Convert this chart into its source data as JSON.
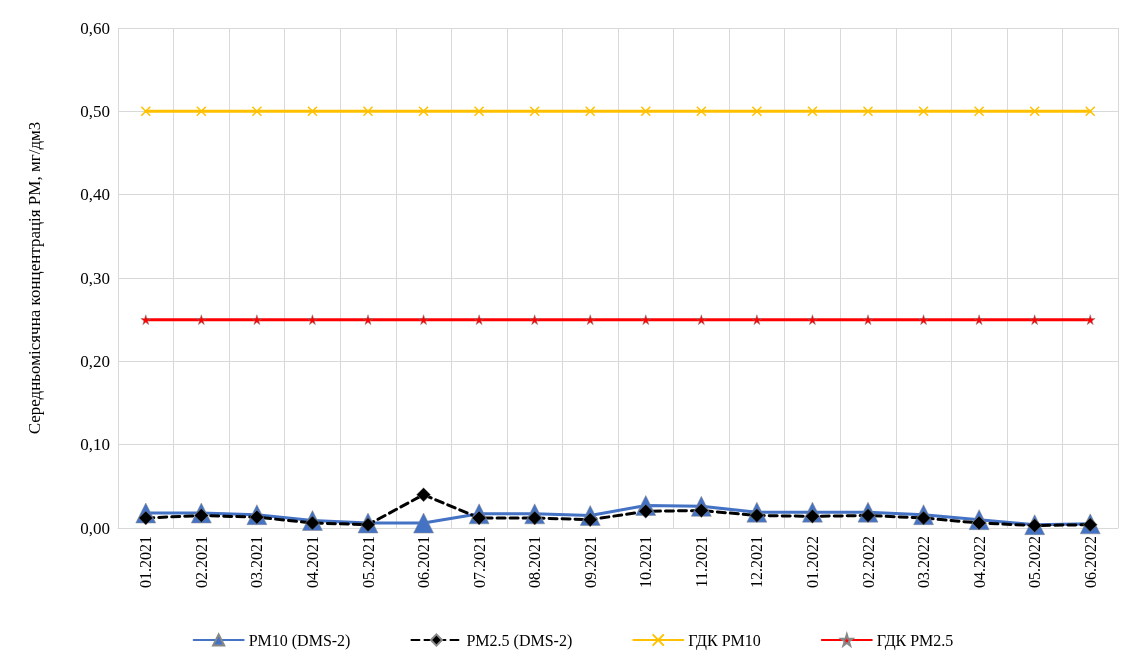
{
  "chart_data": {
    "type": "line",
    "ylabel": "Середньомісячна концентрація РМ, мг/дм3",
    "categories": [
      "01.2021",
      "02.2021",
      "03.2021",
      "04.2021",
      "05.2021",
      "06.2021",
      "07.2021",
      "08.2021",
      "09.2021",
      "10.2021",
      "11.2021",
      "12.2021",
      "01.2022",
      "02.2022",
      "03.2022",
      "04.2022",
      "05.2022",
      "06.2022"
    ],
    "series": [
      {
        "name": "PM10 (DMS-2)",
        "color": "#4472c4",
        "marker": "triangle",
        "line_style": "solid",
        "values": [
          0.018,
          0.018,
          0.016,
          0.009,
          0.006,
          0.006,
          0.017,
          0.017,
          0.015,
          0.027,
          0.026,
          0.019,
          0.019,
          0.019,
          0.016,
          0.01,
          0.004,
          0.005
        ]
      },
      {
        "name": "PM2.5 (DMS-2)",
        "color": "#000000",
        "marker": "diamond",
        "line_style": "dashed",
        "values": [
          0.012,
          0.015,
          0.013,
          0.006,
          0.004,
          0.04,
          0.012,
          0.012,
          0.01,
          0.02,
          0.021,
          0.015,
          0.014,
          0.015,
          0.012,
          0.006,
          0.003,
          0.004
        ]
      },
      {
        "name": "ГДК PM10",
        "color": "#ffc000",
        "marker": "cross",
        "line_style": "solid",
        "values": [
          0.5,
          0.5,
          0.5,
          0.5,
          0.5,
          0.5,
          0.5,
          0.5,
          0.5,
          0.5,
          0.5,
          0.5,
          0.5,
          0.5,
          0.5,
          0.5,
          0.5,
          0.5
        ]
      },
      {
        "name": "ГДК PM2.5",
        "color": "#ff0000",
        "marker": "star",
        "line_style": "solid",
        "values": [
          0.25,
          0.25,
          0.25,
          0.25,
          0.25,
          0.25,
          0.25,
          0.25,
          0.25,
          0.25,
          0.25,
          0.25,
          0.25,
          0.25,
          0.25,
          0.25,
          0.25,
          0.25
        ]
      }
    ],
    "ylim": [
      0,
      0.6
    ],
    "yticks": [
      {
        "value": 0,
        "label": "0,00"
      },
      {
        "value": 0.1,
        "label": "0,10"
      },
      {
        "value": 0.2,
        "label": "0,20"
      },
      {
        "value": 0.3,
        "label": "0,30"
      },
      {
        "value": 0.4,
        "label": "0,40"
      },
      {
        "value": 0.5,
        "label": "0,50"
      },
      {
        "value": 0.6,
        "label": "0,60"
      }
    ],
    "grid": true,
    "legend": "bottom"
  }
}
